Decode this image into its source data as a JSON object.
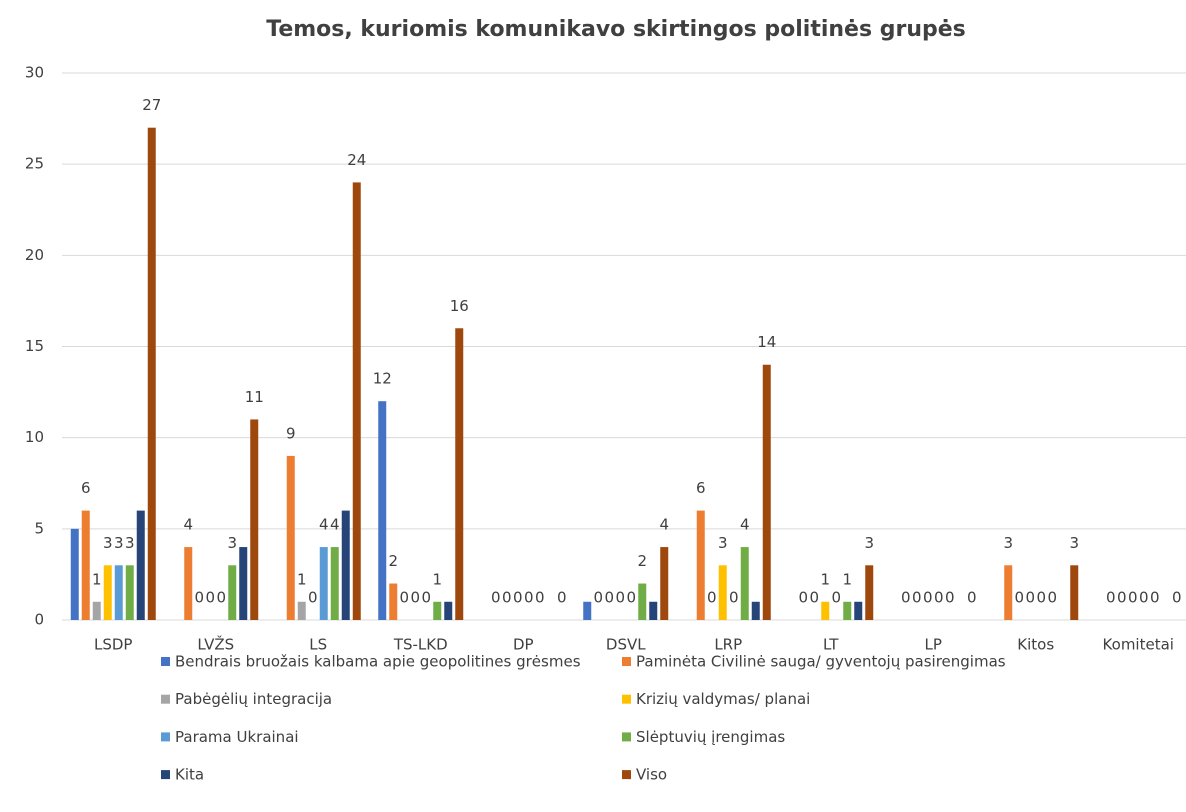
{
  "chart_data": {
    "type": "bar",
    "title": "Temos, kuriomis komunikavo skirtingos politinės grupės",
    "categories": [
      "LSDP",
      "LVŽS",
      "LS",
      "TS-LKD",
      "DP",
      "DSVL",
      "LRP",
      "LT",
      "LP",
      "Kitos",
      "Komitetai"
    ],
    "series": [
      {
        "name": "Bendrais bruožais kalbama apie geopolitines grėsmes",
        "color": "#4472c4",
        "values": [
          5,
          0,
          0,
          12,
          0,
          1,
          0,
          0,
          0,
          0,
          0
        ],
        "value_labels": [
          null,
          null,
          null,
          "12",
          null,
          null,
          null,
          null,
          null,
          null,
          null
        ]
      },
      {
        "name": "Paminėta Civilinė sauga/ gyventojų pasirengimas",
        "color": "#ed7d31",
        "values": [
          6,
          4,
          9,
          2,
          0,
          0,
          6,
          0,
          0,
          3,
          0
        ],
        "labels": true
      },
      {
        "name": "Pabėgėlių integracija",
        "color": "#a5a5a5",
        "values": [
          1,
          0,
          1,
          0,
          0,
          0,
          0,
          0,
          0,
          0,
          0
        ],
        "labels": true
      },
      {
        "name": "Krizių valdymas/ planai",
        "color": "#ffc000",
        "values": [
          3,
          0,
          0,
          0,
          0,
          0,
          3,
          1,
          0,
          0,
          0
        ],
        "labels": true
      },
      {
        "name": "Parama Ukrainai",
        "color": "#5b9bd5",
        "values": [
          3,
          0,
          4,
          0,
          0,
          0,
          0,
          0,
          0,
          0,
          0
        ],
        "labels": true
      },
      {
        "name": "Slėptuvių įrengimas",
        "color": "#70ad47",
        "values": [
          3,
          3,
          4,
          1,
          0,
          2,
          4,
          1,
          0,
          0,
          0
        ],
        "labels": true
      },
      {
        "name": "Kita",
        "color": "#264478",
        "values": [
          6,
          4,
          6,
          1,
          0,
          1,
          1,
          1,
          0,
          0,
          0
        ]
      },
      {
        "name": "Viso",
        "color": "#9e480e",
        "values": [
          27,
          11,
          24,
          16,
          0,
          4,
          14,
          3,
          0,
          3,
          0
        ],
        "labels": true
      }
    ],
    "ylim": [
      0,
      30
    ],
    "yticks": [
      0,
      5,
      10,
      15,
      20,
      25,
      30
    ],
    "grid": true
  }
}
